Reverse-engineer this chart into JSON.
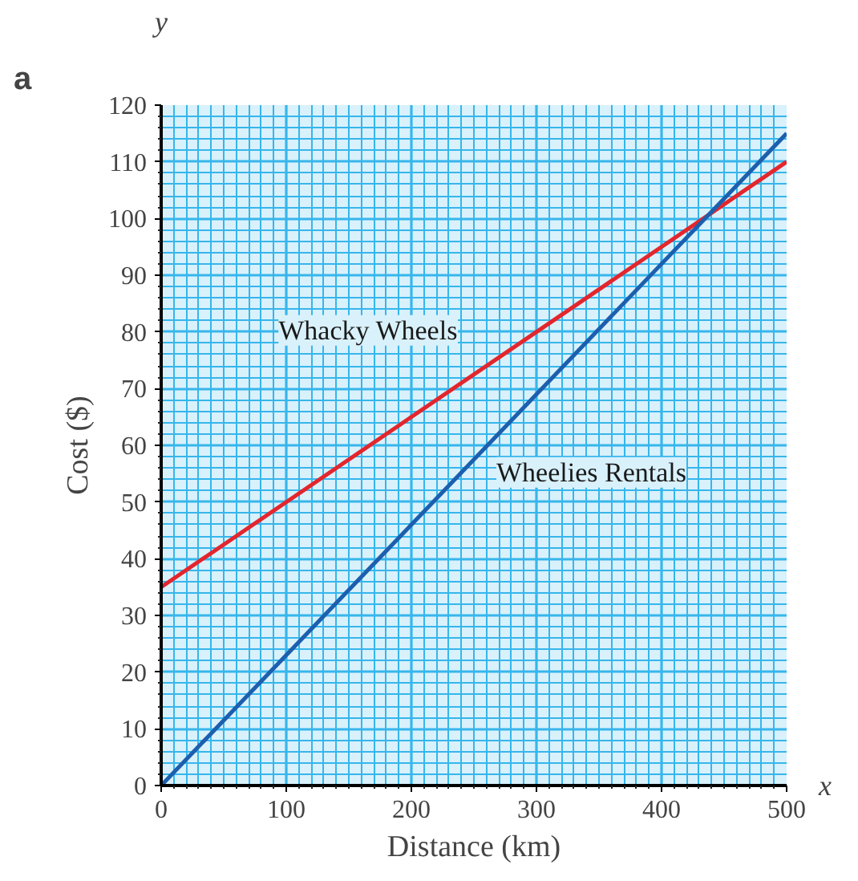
{
  "chart_data": {
    "type": "line",
    "xlabel": "Distance (km)",
    "ylabel": "Cost ($)",
    "annotations": [
      "a",
      "x",
      "y"
    ],
    "x": [
      0,
      500
    ],
    "series": [
      {
        "name": "Whacky Wheels",
        "color": "#e3262d",
        "values": [
          35,
          110
        ]
      },
      {
        "name": "Wheelies Rentals",
        "color": "#1c5fae",
        "values": [
          0,
          115
        ]
      }
    ],
    "xlim": [
      0,
      500
    ],
    "ylim": [
      0,
      120
    ],
    "xticks": [
      0,
      {
        "value": 10,
        "label": null
      },
      {
        "value": 20,
        "label": null
      },
      {
        "value": 30,
        "label": null
      },
      {
        "value": 40,
        "label": null
      },
      {
        "value": 50,
        "label": null
      },
      {
        "value": 60,
        "label": null
      },
      {
        "value": 70,
        "label": null
      },
      {
        "value": 80,
        "label": null
      },
      {
        "value": 90,
        "label": null
      },
      100,
      {
        "value": 110,
        "label": null
      },
      {
        "value": 120,
        "label": null
      },
      {
        "value": 130,
        "label": null
      },
      {
        "value": 140,
        "label": null
      },
      {
        "value": 150,
        "label": null
      },
      {
        "value": 160,
        "label": null
      },
      {
        "value": 170,
        "label": null
      },
      {
        "value": 180,
        "label": null
      },
      {
        "value": 190,
        "label": null
      },
      200,
      {
        "value": 210,
        "label": null
      },
      {
        "value": 220,
        "label": null
      },
      {
        "value": 230,
        "label": null
      },
      {
        "value": 240,
        "label": null
      },
      {
        "value": 250,
        "label": null
      },
      {
        "value": 260,
        "label": null
      },
      {
        "value": 270,
        "label": null
      },
      {
        "value": 280,
        "label": null
      },
      {
        "value": 290,
        "label": null
      },
      300,
      {
        "value": 310,
        "label": null
      },
      {
        "value": 320,
        "label": null
      },
      {
        "value": 330,
        "label": null
      },
      {
        "value": 340,
        "label": null
      },
      {
        "value": 350,
        "label": null
      },
      {
        "value": 360,
        "label": null
      },
      {
        "value": 370,
        "label": null
      },
      {
        "value": 380,
        "label": null
      },
      {
        "value": 390,
        "label": null
      },
      400,
      {
        "value": 410,
        "label": null
      },
      {
        "value": 420,
        "label": null
      },
      {
        "value": 430,
        "label": null
      },
      {
        "value": 440,
        "label": null
      },
      {
        "value": 450,
        "label": null
      },
      {
        "value": 460,
        "label": null
      },
      {
        "value": 470,
        "label": null
      },
      {
        "value": 480,
        "label": null
      },
      {
        "value": 490,
        "label": null
      },
      500
    ],
    "yticks": [
      0,
      {
        "value": 2,
        "label": null
      },
      {
        "value": 4,
        "label": null
      },
      {
        "value": 6,
        "label": null
      },
      {
        "value": 8,
        "label": null
      },
      10,
      {
        "value": 12,
        "label": null
      },
      {
        "value": 14,
        "label": null
      },
      {
        "value": 16,
        "label": null
      },
      {
        "value": 18,
        "label": null
      },
      20,
      {
        "value": 22,
        "label": null
      },
      {
        "value": 24,
        "label": null
      },
      {
        "value": 26,
        "label": null
      },
      {
        "value": 28,
        "label": null
      },
      30,
      {
        "value": 32,
        "label": null
      },
      {
        "value": 34,
        "label": null
      },
      {
        "value": 36,
        "label": null
      },
      {
        "value": 38,
        "label": null
      },
      40,
      {
        "value": 42,
        "label": null
      },
      {
        "value": 44,
        "label": null
      },
      {
        "value": 46,
        "label": null
      },
      {
        "value": 48,
        "label": null
      },
      50,
      {
        "value": 52,
        "label": null
      },
      {
        "value": 54,
        "label": null
      },
      {
        "value": 56,
        "label": null
      },
      {
        "value": 58,
        "label": null
      },
      60,
      {
        "value": 62,
        "label": null
      },
      {
        "value": 64,
        "label": null
      },
      {
        "value": 66,
        "label": null
      },
      {
        "value": 68,
        "label": null
      },
      70,
      {
        "value": 72,
        "label": null
      },
      {
        "value": 74,
        "label": null
      },
      {
        "value": 76,
        "label": null
      },
      {
        "value": 78,
        "label": null
      },
      80,
      {
        "value": 82,
        "label": null
      },
      {
        "value": 84,
        "label": null
      },
      {
        "value": 86,
        "label": null
      },
      {
        "value": 88,
        "label": null
      },
      90,
      {
        "value": 92,
        "label": null
      },
      {
        "value": 94,
        "label": null
      },
      {
        "value": 96,
        "label": null
      },
      {
        "value": 98,
        "label": null
      },
      100,
      {
        "value": 102,
        "label": null
      },
      {
        "value": 104,
        "label": null
      },
      {
        "value": 106,
        "label": null
      },
      {
        "value": 108,
        "label": null
      },
      110,
      {
        "value": 112,
        "label": null
      },
      {
        "value": 114,
        "label": null
      },
      {
        "value": 116,
        "label": null
      },
      {
        "value": 118,
        "label": null
      },
      120
    ],
    "grid": true,
    "legend": false,
    "line_style": "solid",
    "marker": "none"
  }
}
